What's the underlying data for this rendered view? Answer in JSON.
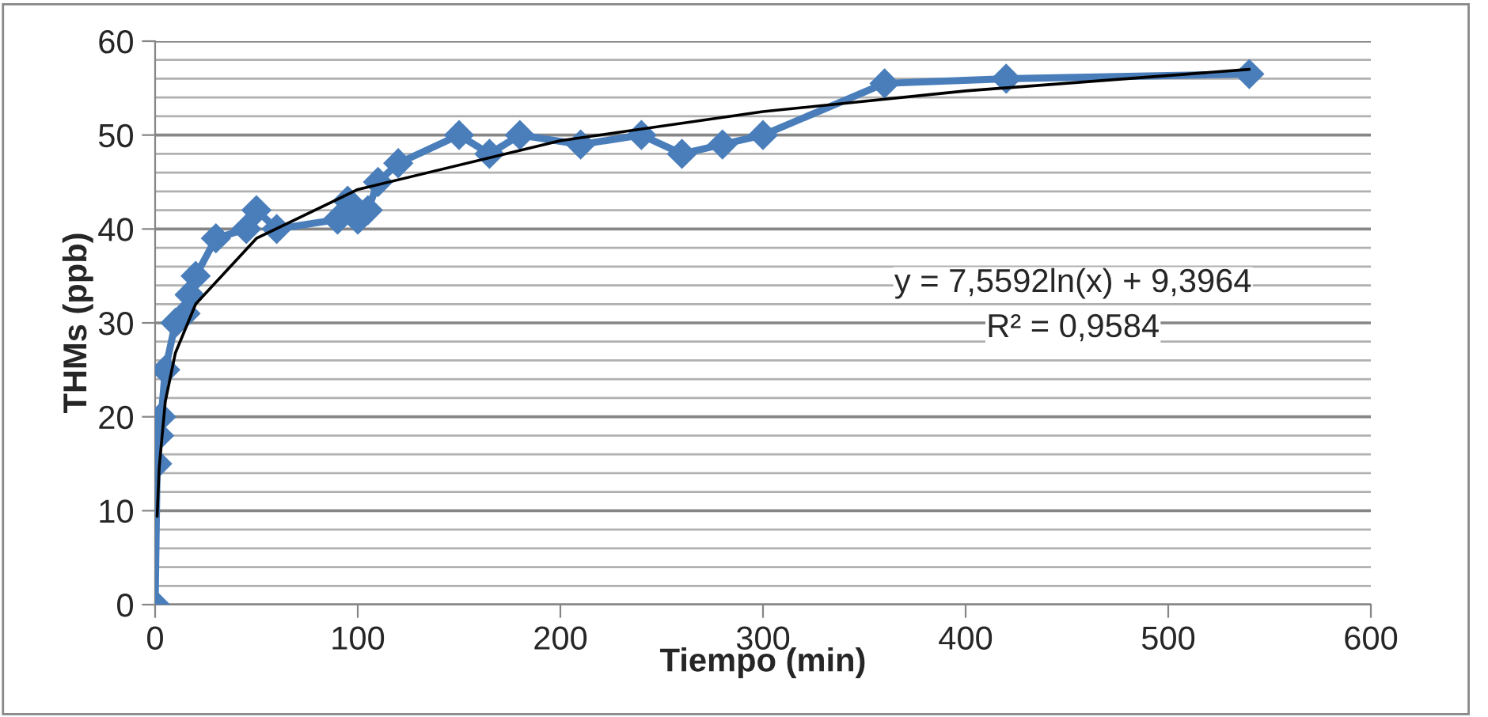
{
  "chart_data": {
    "type": "line",
    "xlabel": "Tiempo (min)",
    "ylabel": "THMs (ppb)",
    "x": [
      0,
      1,
      2,
      3,
      5,
      10,
      15,
      17,
      20,
      30,
      45,
      50,
      60,
      90,
      95,
      100,
      105,
      110,
      120,
      150,
      165,
      180,
      210,
      240,
      260,
      280,
      300,
      360,
      420,
      540
    ],
    "series": [
      {
        "color": "#4a7ebb",
        "marker": "diamond",
        "values": [
          0,
          15,
          18,
          20,
          25,
          30,
          31,
          33,
          35,
          39,
          40,
          42,
          40,
          41,
          43,
          41,
          42,
          45,
          47,
          50,
          48,
          50,
          49,
          50,
          48,
          49,
          50,
          55.5,
          56,
          56.5
        ]
      },
      {
        "color": "#000000",
        "marker": "none",
        "x": [
          1,
          2,
          5,
          10,
          20,
          50,
          100,
          200,
          300,
          400,
          540
        ],
        "values": [
          9.4,
          14.6,
          21.6,
          26.8,
          32.0,
          39.0,
          44.2,
          49.4,
          52.5,
          54.7,
          57.0
        ]
      }
    ],
    "annotations": [
      "y = 7,5592ln(x) + 9,3964",
      "R² = 0,9584"
    ],
    "xlim": [
      0,
      600
    ],
    "xticks": [
      0,
      100,
      200,
      300,
      400,
      500,
      600
    ],
    "ylim": [
      0,
      60
    ],
    "yticks": [
      0,
      10,
      20,
      30,
      40,
      50,
      60
    ],
    "grid": "y",
    "legend": false
  }
}
